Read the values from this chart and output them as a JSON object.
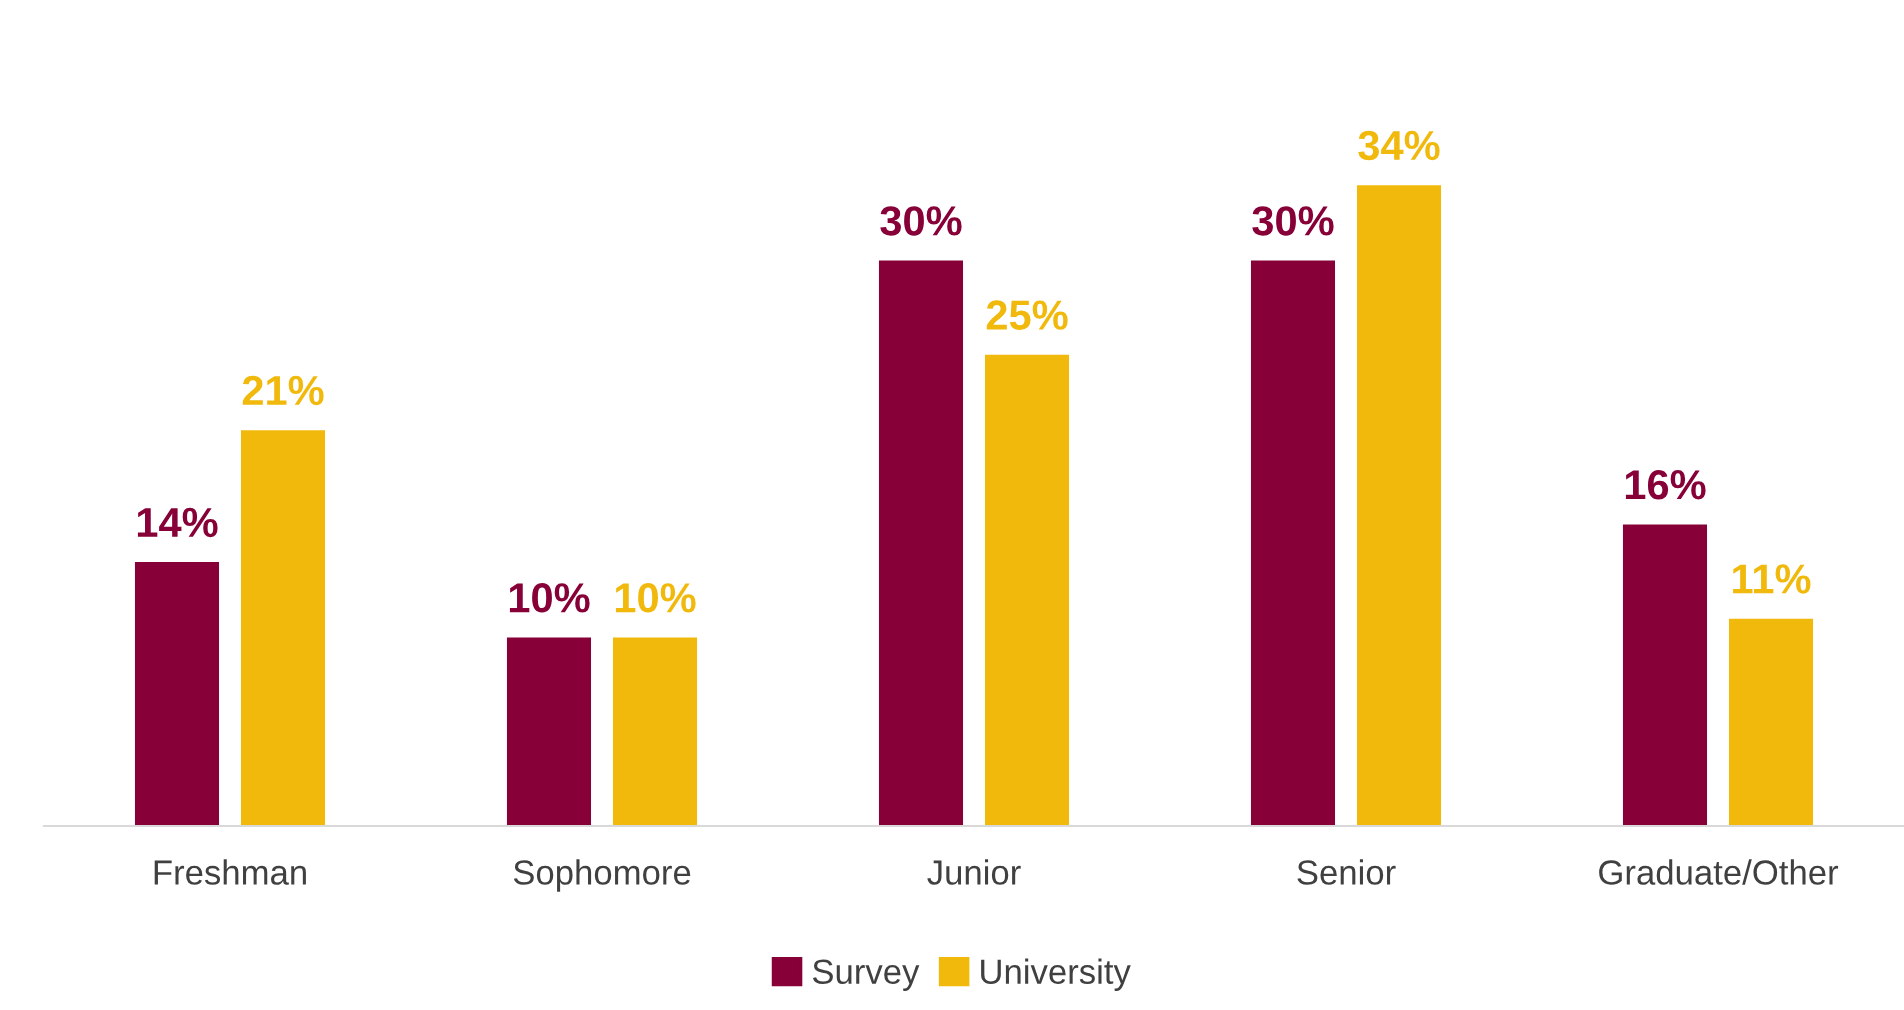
{
  "chart_data": {
    "type": "bar",
    "categories": [
      "Freshman",
      "Sophomore",
      "Junior",
      "Senior",
      "Graduate/Other"
    ],
    "series": [
      {
        "name": "Survey",
        "color": "#870037",
        "values": [
          14,
          10,
          30,
          30,
          16
        ],
        "value_labels": [
          "14%",
          "10%",
          "30%",
          "30%",
          "16%"
        ]
      },
      {
        "name": "University",
        "color": "#f0b90b",
        "values": [
          21,
          10,
          25,
          34,
          11
        ],
        "value_labels": [
          "21%",
          "10%",
          "25%",
          "34%",
          "11%"
        ]
      }
    ],
    "legend": "bottom"
  }
}
